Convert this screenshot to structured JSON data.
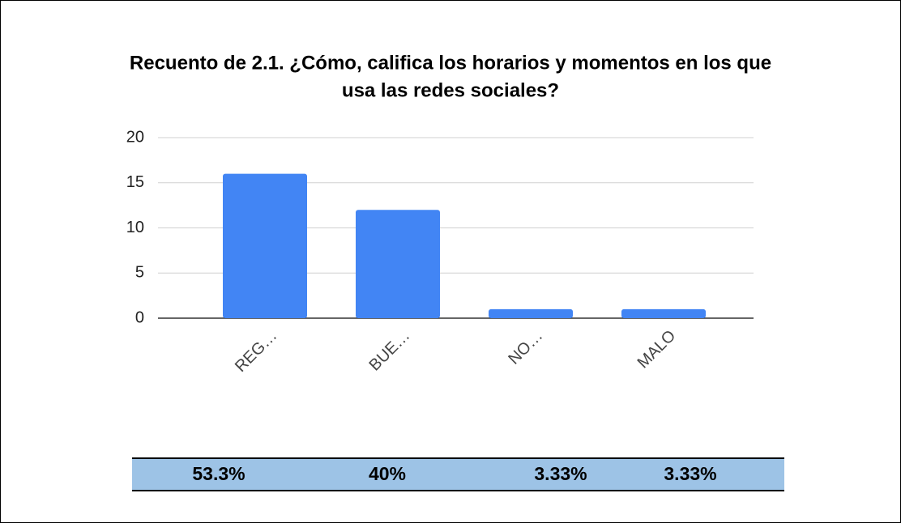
{
  "chart_data": {
    "type": "bar",
    "title": [
      "Recuento de 2.1.  ¿Cómo, califica los horarios y momentos en los que",
      "usa las redes sociales?"
    ],
    "categories": [
      "REG…",
      "BUE…",
      "NO…",
      "MALO"
    ],
    "values": [
      16,
      12,
      1,
      1
    ],
    "color": "#4285f4",
    "ylim": [
      0,
      20
    ],
    "yticks": [
      0,
      5,
      10,
      15,
      20
    ],
    "grid": true,
    "percent_row": [
      "53.3%",
      "40%",
      "3.33%",
      "3.33%"
    ]
  }
}
